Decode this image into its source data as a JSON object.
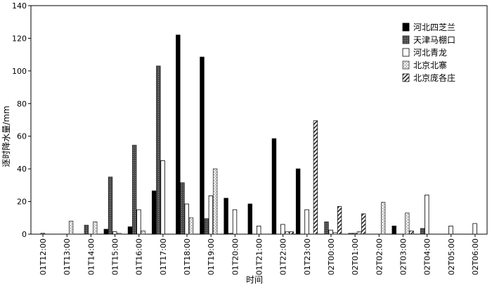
{
  "chart_data": {
    "type": "bar",
    "xlabel": "时间",
    "ylabel": "逐时降水量/mm",
    "ylim": [
      0,
      140
    ],
    "yticks": [
      0,
      20,
      40,
      60,
      80,
      100,
      120,
      140
    ],
    "grid": false,
    "legend_position": "top-right",
    "categories": [
      "01T12:00",
      "01T13:00",
      "01T14:00",
      "01T15:00",
      "01T16:00",
      "01T17:00",
      "01T18:00",
      "01T19:00",
      "01T20:00",
      "01T21:00",
      "01T22:00",
      "01T23:00",
      "02T00:00",
      "02T01:00",
      "02T02:00",
      "02T03:00",
      "02T04:00",
      "02T05:00",
      "02T06:00"
    ],
    "series": [
      {
        "name": "河北四芝兰",
        "style": "solid-black",
        "values": [
          0,
          0,
          0,
          3,
          4.5,
          26.5,
          122,
          108.5,
          22,
          18.5,
          58.5,
          40,
          0,
          0,
          0,
          5,
          0,
          0,
          0
        ]
      },
      {
        "name": "天津马棚口",
        "style": "dark-gray-dotted",
        "values": [
          0,
          0,
          5.5,
          35,
          54.5,
          103,
          31.5,
          9.5,
          0.5,
          0,
          0,
          0,
          7.5,
          0.5,
          0,
          0,
          3.5,
          0,
          0
        ]
      },
      {
        "name": "河北青龙",
        "style": "white",
        "values": [
          0.5,
          0,
          0,
          1.5,
          15,
          45,
          18.5,
          23.5,
          15,
          5,
          6,
          15,
          2.5,
          0.5,
          0,
          0,
          24,
          5,
          6.5
        ]
      },
      {
        "name": "北京北寨",
        "style": "light-dotted",
        "values": [
          0,
          8,
          7.5,
          0.5,
          2,
          0,
          10,
          40,
          0,
          0,
          1.5,
          0,
          1,
          1.5,
          19.5,
          13,
          0,
          0,
          0
        ]
      },
      {
        "name": "北京庞各庄",
        "style": "hatched",
        "values": [
          0,
          0,
          0,
          0,
          0,
          0,
          0,
          0,
          0,
          0,
          1.5,
          69.5,
          17,
          12.5,
          0,
          2,
          0,
          0,
          0
        ]
      }
    ]
  }
}
